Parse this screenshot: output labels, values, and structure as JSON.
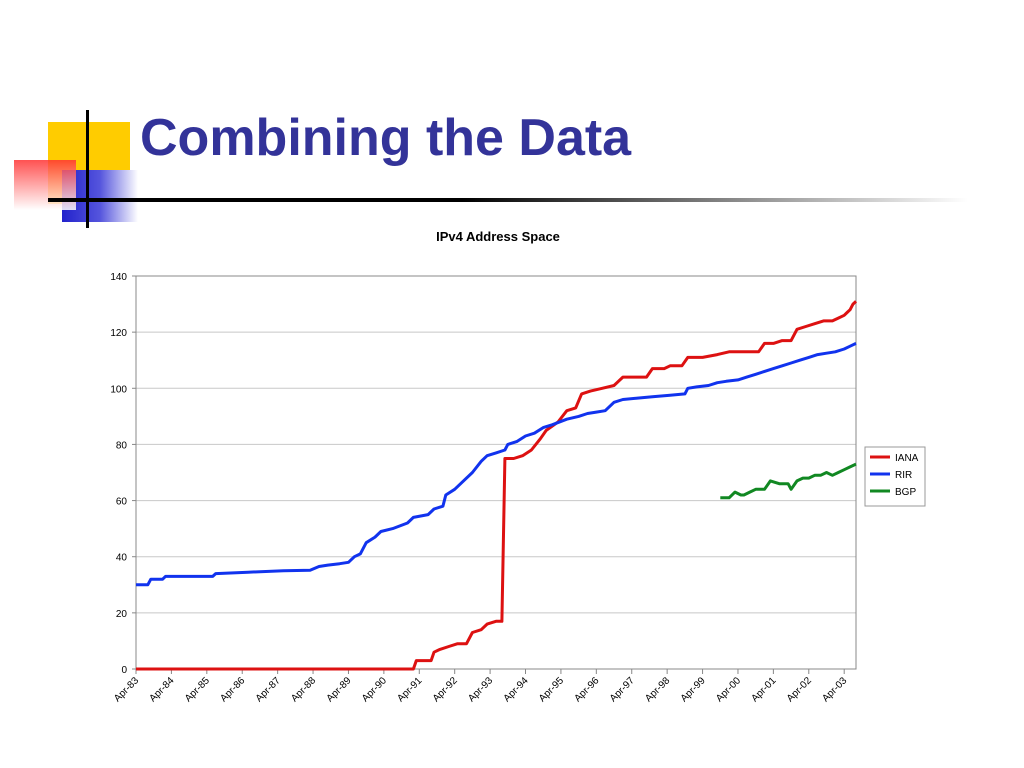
{
  "slide": {
    "title": "Combining the Data"
  },
  "colors": {
    "title": "#333399",
    "yellow": "#ffcc00",
    "blue": "#3333cc",
    "red": "#ff3333"
  },
  "chart_data": {
    "type": "line",
    "title": "IPv4 Address Space",
    "xlabel": "",
    "ylabel": "",
    "ylim": [
      0,
      140
    ],
    "yticks": [
      0,
      20,
      40,
      60,
      80,
      100,
      120,
      140
    ],
    "xlim": [
      "1983-04",
      "2003-08"
    ],
    "x_tick_labels": [
      "Apr-83",
      "Apr-84",
      "Apr-85",
      "Apr-86",
      "Apr-87",
      "Apr-88",
      "Apr-89",
      "Apr-90",
      "Apr-91",
      "Apr-92",
      "Apr-93",
      "Apr-94",
      "Apr-95",
      "Apr-96",
      "Apr-97",
      "Apr-98",
      "Apr-99",
      "Apr-00",
      "Apr-01",
      "Apr-02",
      "Apr-03"
    ],
    "x_tick_dates": [
      "1983-04",
      "1984-04",
      "1985-04",
      "1986-04",
      "1987-04",
      "1988-04",
      "1989-04",
      "1990-04",
      "1991-04",
      "1992-04",
      "1993-04",
      "1994-04",
      "1995-04",
      "1996-04",
      "1997-04",
      "1998-04",
      "1999-04",
      "2000-04",
      "2001-04",
      "2002-04",
      "2003-04"
    ],
    "grid": "horizontal",
    "legend_position": "right",
    "series": [
      {
        "name": "IANA",
        "color": "#dd1111",
        "points": [
          [
            "1983-04",
            0
          ],
          [
            "1991-02",
            0
          ],
          [
            "1991-03",
            3
          ],
          [
            "1991-08",
            3
          ],
          [
            "1991-09",
            6
          ],
          [
            "1991-11",
            7
          ],
          [
            "1992-02",
            8
          ],
          [
            "1992-05",
            9
          ],
          [
            "1992-08",
            9
          ],
          [
            "1992-10",
            13
          ],
          [
            "1993-01",
            14
          ],
          [
            "1993-03",
            16
          ],
          [
            "1993-06",
            17
          ],
          [
            "1993-08",
            17
          ],
          [
            "1993-09",
            75
          ],
          [
            "1993-12",
            75
          ],
          [
            "1994-03",
            76
          ],
          [
            "1994-06",
            78
          ],
          [
            "1994-09",
            82
          ],
          [
            "1994-11",
            85
          ],
          [
            "1995-03",
            88
          ],
          [
            "1995-06",
            92
          ],
          [
            "1995-09",
            93
          ],
          [
            "1995-11",
            98
          ],
          [
            "1996-02",
            99
          ],
          [
            "1996-06",
            100
          ],
          [
            "1996-10",
            101
          ],
          [
            "1997-01",
            104
          ],
          [
            "1997-05",
            104
          ],
          [
            "1997-09",
            104
          ],
          [
            "1997-11",
            107
          ],
          [
            "1998-03",
            107
          ],
          [
            "1998-05",
            108
          ],
          [
            "1998-09",
            108
          ],
          [
            "1998-11",
            111
          ],
          [
            "1999-04",
            111
          ],
          [
            "1999-09",
            112
          ],
          [
            "2000-01",
            113
          ],
          [
            "2000-06",
            113
          ],
          [
            "2000-11",
            113
          ],
          [
            "2001-01",
            116
          ],
          [
            "2001-04",
            116
          ],
          [
            "2001-07",
            117
          ],
          [
            "2001-10",
            117
          ],
          [
            "2001-12",
            121
          ],
          [
            "2002-03",
            122
          ],
          [
            "2002-06",
            123
          ],
          [
            "2002-09",
            124
          ],
          [
            "2002-12",
            124
          ],
          [
            "2003-02",
            125
          ],
          [
            "2003-04",
            126
          ],
          [
            "2003-05",
            127
          ],
          [
            "2003-06",
            128
          ],
          [
            "2003-07",
            130
          ],
          [
            "2003-08",
            131
          ]
        ]
      },
      {
        "name": "RIR",
        "color": "#1133ee",
        "points": [
          [
            "1983-04",
            30
          ],
          [
            "1983-08",
            30
          ],
          [
            "1983-09",
            32
          ],
          [
            "1984-01",
            32
          ],
          [
            "1984-02",
            33
          ],
          [
            "1984-06",
            33
          ],
          [
            "1985-06",
            33
          ],
          [
            "1985-07",
            34
          ],
          [
            "1986-06",
            34.5
          ],
          [
            "1987-06",
            35
          ],
          [
            "1988-03",
            35.2
          ],
          [
            "1988-06",
            36.5
          ],
          [
            "1988-09",
            37
          ],
          [
            "1989-01",
            37.5
          ],
          [
            "1989-04",
            38
          ],
          [
            "1989-06",
            40
          ],
          [
            "1989-08",
            41
          ],
          [
            "1989-10",
            45
          ],
          [
            "1990-01",
            47
          ],
          [
            "1990-03",
            49
          ],
          [
            "1990-07",
            50
          ],
          [
            "1990-12",
            52
          ],
          [
            "1991-02",
            54
          ],
          [
            "1991-07",
            55
          ],
          [
            "1991-09",
            57
          ],
          [
            "1991-12",
            58
          ],
          [
            "1992-01",
            62
          ],
          [
            "1992-04",
            64
          ],
          [
            "1992-07",
            67
          ],
          [
            "1992-10",
            70
          ],
          [
            "1993-01",
            74
          ],
          [
            "1993-03",
            76
          ],
          [
            "1993-06",
            77
          ],
          [
            "1993-09",
            78
          ],
          [
            "1993-10",
            80
          ],
          [
            "1994-01",
            81
          ],
          [
            "1994-04",
            83
          ],
          [
            "1994-07",
            84
          ],
          [
            "1994-10",
            86
          ],
          [
            "1995-01",
            87
          ],
          [
            "1995-06",
            89
          ],
          [
            "1995-10",
            90
          ],
          [
            "1996-01",
            91
          ],
          [
            "1996-04",
            91.5
          ],
          [
            "1996-07",
            92
          ],
          [
            "1996-10",
            95
          ],
          [
            "1997-01",
            96
          ],
          [
            "1997-06",
            96.5
          ],
          [
            "1997-11",
            97
          ],
          [
            "1998-05",
            97.5
          ],
          [
            "1998-10",
            98
          ],
          [
            "1998-11",
            100
          ],
          [
            "1999-02",
            100.5
          ],
          [
            "1999-06",
            101
          ],
          [
            "1999-09",
            102
          ],
          [
            "1999-12",
            102.5
          ],
          [
            "2000-04",
            103
          ],
          [
            "2000-07",
            104
          ],
          [
            "2000-10",
            105
          ],
          [
            "2001-01",
            106
          ],
          [
            "2001-04",
            107
          ],
          [
            "2001-07",
            108
          ],
          [
            "2001-10",
            109
          ],
          [
            "2002-01",
            110
          ],
          [
            "2002-04",
            111
          ],
          [
            "2002-07",
            112
          ],
          [
            "2002-10",
            112.5
          ],
          [
            "2003-01",
            113
          ],
          [
            "2003-04",
            114
          ],
          [
            "2003-06",
            115
          ],
          [
            "2003-08",
            116
          ]
        ]
      },
      {
        "name": "BGP",
        "color": "#118822",
        "points": [
          [
            "1999-10",
            61
          ],
          [
            "2000-01",
            61
          ],
          [
            "2000-03",
            63
          ],
          [
            "2000-05",
            62
          ],
          [
            "2000-06",
            62
          ],
          [
            "2000-08",
            63
          ],
          [
            "2000-10",
            64
          ],
          [
            "2001-01",
            64
          ],
          [
            "2001-03",
            67
          ],
          [
            "2001-06",
            66
          ],
          [
            "2001-08",
            66
          ],
          [
            "2001-09",
            66
          ],
          [
            "2001-10",
            64
          ],
          [
            "2001-12",
            67
          ],
          [
            "2002-02",
            68
          ],
          [
            "2002-04",
            68
          ],
          [
            "2002-06",
            69
          ],
          [
            "2002-08",
            69
          ],
          [
            "2002-10",
            70
          ],
          [
            "2002-12",
            69
          ],
          [
            "2003-02",
            70
          ],
          [
            "2003-04",
            71
          ],
          [
            "2003-06",
            72
          ],
          [
            "2003-08",
            73
          ]
        ]
      }
    ]
  }
}
